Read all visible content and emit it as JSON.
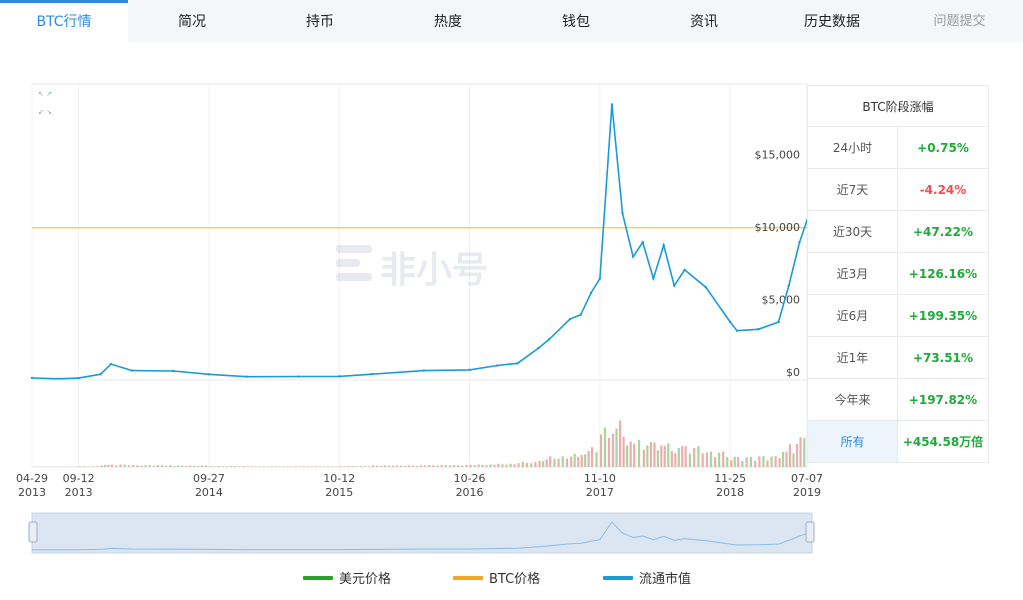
{
  "tabs": [
    {
      "label": "BTC行情",
      "active": true
    },
    {
      "label": "简况"
    },
    {
      "label": "持币"
    },
    {
      "label": "热度"
    },
    {
      "label": "钱包"
    },
    {
      "label": "资讯"
    },
    {
      "label": "历史数据"
    },
    {
      "label": "问题提交"
    }
  ],
  "watermark": "非小号",
  "colors": {
    "accent": "#2f8ae6",
    "price_line": "#1a9bd6",
    "usd": "#2aa02a",
    "btc": "#f5a623",
    "up": "#1faa3a",
    "down": "#ef4f4f",
    "ref_line": "#f2c84b"
  },
  "chart_data": {
    "type": "line",
    "x": [
      "2013-04-29",
      "2013-07",
      "2013-09-12",
      "2013-11",
      "2013-12",
      "2014-02",
      "2014-06",
      "2014-09-27",
      "2015-01",
      "2015-06",
      "2015-10-12",
      "2016-01",
      "2016-06",
      "2016-10-26",
      "2017-01",
      "2017-03",
      "2017-05",
      "2017-06",
      "2017-08",
      "2017-09",
      "2017-10",
      "2017-11-10",
      "2017-12",
      "2018-01",
      "2018-02",
      "2018-03",
      "2018-04",
      "2018-05",
      "2018-06",
      "2018-07",
      "2018-09",
      "2018-11-25",
      "2018-12",
      "2019-02",
      "2019-04",
      "2019-05",
      "2019-06",
      "2019-07-07"
    ],
    "series": [
      {
        "values": [
          140,
          80,
          130,
          400,
          1100,
          650,
          620,
          390,
          230,
          240,
          250,
          400,
          650,
          700,
          1000,
          1150,
          2200,
          2800,
          4200,
          4500,
          6000,
          7000,
          19000,
          11500,
          8500,
          9500,
          7000,
          9300,
          6500,
          7600,
          6400,
          4000,
          3400,
          3500,
          4000,
          6500,
          9500,
          11000
        ]
      }
    ],
    "y_ticks": [
      "$0",
      "$5,000",
      "$10,000",
      "$15,000"
    ],
    "ylim": [
      0,
      20000
    ],
    "reference_line": 10500,
    "x_ticks": [
      {
        "line1": "04-29",
        "line2": "2013"
      },
      {
        "line1": "09-12",
        "line2": "2013"
      },
      {
        "line1": "09-27",
        "line2": "2014"
      },
      {
        "line1": "10-12",
        "line2": "2015"
      },
      {
        "line1": "10-26",
        "line2": "2016"
      },
      {
        "line1": "11-10",
        "line2": "2017"
      },
      {
        "line1": "11-25",
        "line2": "2018"
      },
      {
        "line1": "07-07",
        "line2": "2019"
      }
    ],
    "legend": [
      "美元价格",
      "BTC价格",
      "流通市值"
    ],
    "grid": true
  },
  "change_table": {
    "title": "BTC阶段涨幅",
    "rows": [
      {
        "label": "24小时",
        "value": "+0.75%",
        "dir": "up"
      },
      {
        "label": "近7天",
        "value": "-4.24%",
        "dir": "down"
      },
      {
        "label": "近30天",
        "value": "+47.22%",
        "dir": "up"
      },
      {
        "label": "近3月",
        "value": "+126.16%",
        "dir": "up"
      },
      {
        "label": "近6月",
        "value": "+199.35%",
        "dir": "up"
      },
      {
        "label": "近1年",
        "value": "+73.51%",
        "dir": "up"
      },
      {
        "label": "今年来",
        "value": "+197.82%",
        "dir": "up"
      },
      {
        "label": "所有",
        "value": "+454.58万倍",
        "dir": "up",
        "selected": true
      }
    ]
  }
}
